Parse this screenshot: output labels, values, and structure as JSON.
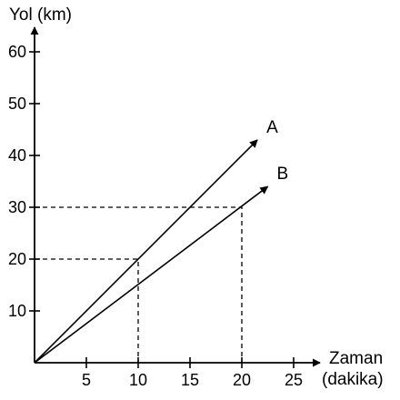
{
  "chart_data": {
    "type": "line",
    "ylabel": "Yol (km)",
    "xlabel_line1": "Zaman",
    "xlabel_line2": "(dakika)",
    "x_ticks": [
      5,
      10,
      15,
      20,
      25
    ],
    "y_ticks": [
      10,
      20,
      30,
      40,
      50,
      60
    ],
    "xlim": [
      0,
      30
    ],
    "ylim": [
      0,
      70
    ],
    "grid": false,
    "series": [
      {
        "name": "A",
        "points": [
          [
            0,
            0
          ],
          [
            21.5,
            43
          ]
        ]
      },
      {
        "name": "B",
        "points": [
          [
            0,
            0
          ],
          [
            22.5,
            34
          ]
        ]
      }
    ],
    "guides": [
      {
        "x": 10,
        "y": 20
      },
      {
        "x": 20,
        "y": 30
      }
    ]
  }
}
